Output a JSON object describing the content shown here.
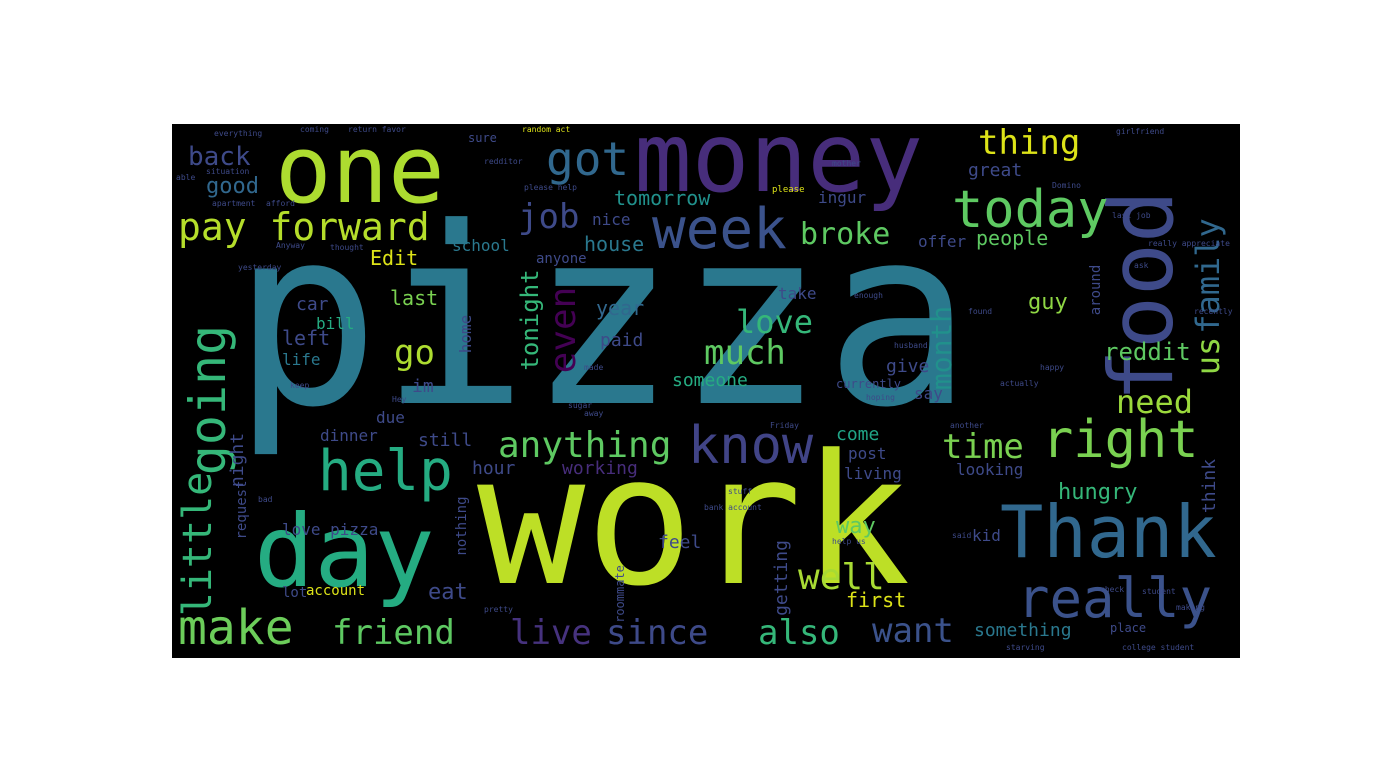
{
  "words": [
    {
      "id": "pizza",
      "text": "pizza",
      "color": "#2a788e"
    },
    {
      "id": "work",
      "text": "work",
      "color": "#bddf26"
    },
    {
      "id": "money",
      "text": "money",
      "color": "#472d7b"
    },
    {
      "id": "one",
      "text": "one",
      "color": "#addc30"
    },
    {
      "id": "food",
      "text": "food",
      "color": "#3e4a89"
    },
    {
      "id": "day",
      "text": "day",
      "color": "#25ac82"
    },
    {
      "id": "thank",
      "text": "Thank",
      "color": "#31688e"
    },
    {
      "id": "really",
      "text": "really",
      "color": "#3b528b"
    },
    {
      "id": "today",
      "text": "today",
      "color": "#5ec962"
    },
    {
      "id": "week",
      "text": "week",
      "color": "#3b528b"
    },
    {
      "id": "got",
      "text": "got",
      "color": "#31688e"
    },
    {
      "id": "right",
      "text": "right",
      "color": "#7ad151"
    },
    {
      "id": "know",
      "text": "know",
      "color": "#414487"
    },
    {
      "id": "help",
      "text": "help",
      "color": "#25ac82"
    },
    {
      "id": "pay-forward",
      "text": "pay forward",
      "color": "#b5de2b"
    },
    {
      "id": "make",
      "text": "make",
      "color": "#6ccd5a"
    },
    {
      "id": "going",
      "text": "going",
      "color": "#35b779"
    },
    {
      "id": "little",
      "text": "little",
      "color": "#35b779"
    },
    {
      "id": "anything",
      "text": "anything",
      "color": "#5ec962"
    },
    {
      "id": "family",
      "text": "family",
      "color": "#31688e"
    },
    {
      "id": "us",
      "text": "us",
      "color": "#8fd744"
    },
    {
      "id": "friend",
      "text": "friend",
      "color": "#5ec962"
    },
    {
      "id": "since",
      "text": "since",
      "color": "#3e4a89"
    },
    {
      "id": "also",
      "text": "also",
      "color": "#35b779"
    },
    {
      "id": "live",
      "text": "live",
      "color": "#46327e"
    },
    {
      "id": "want",
      "text": "want",
      "color": "#3b528b"
    },
    {
      "id": "even",
      "text": "even",
      "color": "#440154"
    },
    {
      "id": "job",
      "text": "job",
      "color": "#3e4a89"
    },
    {
      "id": "thing",
      "text": "thing",
      "color": "#dde318"
    },
    {
      "id": "back",
      "text": "back",
      "color": "#3e4a89"
    },
    {
      "id": "good",
      "text": "good",
      "color": "#31688e"
    },
    {
      "id": "broke",
      "text": "broke",
      "color": "#5ec962"
    },
    {
      "id": "love",
      "text": "love",
      "color": "#35b779"
    },
    {
      "id": "much",
      "text": "much",
      "color": "#5ec962"
    },
    {
      "id": "need",
      "text": "need",
      "color": "#9bd93c"
    },
    {
      "id": "time",
      "text": "time",
      "color": "#7ad151"
    },
    {
      "id": "well",
      "text": "well",
      "color": "#a8db34"
    },
    {
      "id": "go",
      "text": "go",
      "color": "#addc30"
    },
    {
      "id": "month",
      "text": "month",
      "color": "#21918c"
    },
    {
      "id": "tonight",
      "text": "tonight",
      "color": "#35b779"
    },
    {
      "id": "reddit",
      "text": "reddit",
      "color": "#5ec962"
    },
    {
      "id": "hungry",
      "text": "hungry",
      "color": "#35b779"
    },
    {
      "id": "tomorrow",
      "text": "tomorrow",
      "color": "#21918c"
    },
    {
      "id": "house",
      "text": "house",
      "color": "#2a788e"
    },
    {
      "id": "people",
      "text": "people",
      "color": "#5ec962"
    },
    {
      "id": "edit",
      "text": "Edit",
      "color": "#dde318"
    },
    {
      "id": "last",
      "text": "last",
      "color": "#7ad151"
    },
    {
      "id": "left",
      "text": "left",
      "color": "#3e4a89"
    },
    {
      "id": "year",
      "text": "year",
      "color": "#31688e"
    },
    {
      "id": "guy",
      "text": "guy",
      "color": "#8fd744"
    },
    {
      "id": "someone",
      "text": "someone",
      "color": "#25ac82"
    },
    {
      "id": "way",
      "text": "way",
      "color": "#5ec962"
    },
    {
      "id": "come",
      "text": "come",
      "color": "#20a486"
    },
    {
      "id": "hour",
      "text": "hour",
      "color": "#3e4a89"
    },
    {
      "id": "working",
      "text": "working",
      "color": "#472d7b"
    },
    {
      "id": "still",
      "text": "still",
      "color": "#3e4a89"
    },
    {
      "id": "eat",
      "text": "eat",
      "color": "#3e4a89"
    },
    {
      "id": "first",
      "text": "first",
      "color": "#dde318"
    },
    {
      "id": "getting",
      "text": "getting",
      "color": "#3e4a89"
    },
    {
      "id": "feel",
      "text": "feel",
      "color": "#3e4a89"
    },
    {
      "id": "something",
      "text": "something",
      "color": "#2a788e"
    },
    {
      "id": "account",
      "text": "account",
      "color": "#dde318"
    },
    {
      "id": "night",
      "text": "night",
      "color": "#3e4a89"
    },
    {
      "id": "love-pizza",
      "text": "love pizza",
      "color": "#3e4a89"
    },
    {
      "id": "car",
      "text": "car",
      "color": "#3e4a89"
    },
    {
      "id": "bill",
      "text": "bill",
      "color": "#25ac82"
    },
    {
      "id": "life",
      "text": "life",
      "color": "#2a788e"
    },
    {
      "id": "im",
      "text": "im",
      "color": "#3e4a89"
    },
    {
      "id": "due",
      "text": "due",
      "color": "#3e4a89"
    },
    {
      "id": "dinner",
      "text": "dinner",
      "color": "#3e4a89"
    },
    {
      "id": "paid",
      "text": "paid",
      "color": "#3e4a89"
    },
    {
      "id": "home",
      "text": "home",
      "color": "#3e4a89"
    },
    {
      "id": "school",
      "text": "school",
      "color": "#2a788e"
    },
    {
      "id": "anyone",
      "text": "anyone",
      "color": "#3e4a89"
    },
    {
      "id": "nice",
      "text": "nice",
      "color": "#3e4a89"
    },
    {
      "id": "ingur",
      "text": "ingur",
      "color": "#3e4a89"
    },
    {
      "id": "great",
      "text": "great",
      "color": "#3e4a89"
    },
    {
      "id": "offer",
      "text": "offer",
      "color": "#3e4a89"
    },
    {
      "id": "take",
      "text": "take",
      "color": "#3e4a89"
    },
    {
      "id": "give",
      "text": "give",
      "color": "#3e4a89"
    },
    {
      "id": "say",
      "text": "say",
      "color": "#3e4a89"
    },
    {
      "id": "post",
      "text": "post",
      "color": "#3e4a89"
    },
    {
      "id": "living",
      "text": "living",
      "color": "#3e4a89"
    },
    {
      "id": "looking",
      "text": "looking",
      "color": "#3e4a89"
    },
    {
      "id": "think",
      "text": "think",
      "color": "#3e4a89"
    },
    {
      "id": "around",
      "text": "around",
      "color": "#3e4a89"
    },
    {
      "id": "currently",
      "text": "currently",
      "color": "#3e4a89"
    },
    {
      "id": "kid",
      "text": "kid",
      "color": "#3e4a89"
    },
    {
      "id": "request",
      "text": "request",
      "color": "#3e4a89"
    },
    {
      "id": "nothing",
      "text": "nothing",
      "color": "#3e4a89"
    },
    {
      "id": "lot",
      "text": "lot",
      "color": "#3e4a89"
    },
    {
      "id": "roommate",
      "text": "roommate",
      "color": "#3e4a89"
    },
    {
      "id": "place",
      "text": "place",
      "color": "#3e4a89"
    },
    {
      "id": "sure",
      "text": "sure",
      "color": "#3e4a89"
    },
    {
      "id": "please",
      "text": "please",
      "color": "#dde318"
    },
    {
      "id": "everything",
      "text": "everything",
      "color": "#3e4a89"
    },
    {
      "id": "coming",
      "text": "coming",
      "color": "#3e4a89"
    },
    {
      "id": "return-favor",
      "text": "return favor",
      "color": "#3e4a89"
    },
    {
      "id": "random-act",
      "text": "random act",
      "color": "#dde318"
    },
    {
      "id": "girlfriend",
      "text": "girlfriend",
      "color": "#3e4a89"
    },
    {
      "id": "redditor",
      "text": "redditor",
      "color": "#3e4a89"
    },
    {
      "id": "please-help",
      "text": "please help",
      "color": "#3e4a89"
    },
    {
      "id": "anyway",
      "text": "Anyway",
      "color": "#3e4a89"
    },
    {
      "id": "apartment",
      "text": "apartment",
      "color": "#3e4a89"
    },
    {
      "id": "afford",
      "text": "afford",
      "color": "#3e4a89"
    },
    {
      "id": "able",
      "text": "able",
      "color": "#3e4a89"
    },
    {
      "id": "situation",
      "text": "situation",
      "color": "#3e4a89"
    },
    {
      "id": "last-job",
      "text": "last job",
      "color": "#3e4a89"
    },
    {
      "id": "domino",
      "text": "Domino",
      "color": "#3e4a89"
    },
    {
      "id": "friday",
      "text": "Friday",
      "color": "#3e4a89"
    },
    {
      "id": "husband",
      "text": "husband",
      "color": "#3e4a89"
    },
    {
      "id": "hoping",
      "text": "hoping",
      "color": "#3e4a89"
    },
    {
      "id": "happy",
      "text": "happy",
      "color": "#3e4a89"
    },
    {
      "id": "actually",
      "text": "actually",
      "color": "#3e4a89"
    },
    {
      "id": "another",
      "text": "another",
      "color": "#3e4a89"
    },
    {
      "id": "bank-account",
      "text": "bank account",
      "color": "#3e4a89"
    },
    {
      "id": "help-us",
      "text": "help us",
      "color": "#3e4a89"
    },
    {
      "id": "student",
      "text": "student",
      "color": "#3e4a89"
    },
    {
      "id": "check",
      "text": "check",
      "color": "#3e4a89"
    },
    {
      "id": "making",
      "text": "making",
      "color": "#3e4a89"
    },
    {
      "id": "college-student",
      "text": "college student",
      "color": "#3e4a89"
    },
    {
      "id": "starving",
      "text": "starving",
      "color": "#3e4a89"
    },
    {
      "id": "stuff",
      "text": "stuff",
      "color": "#3e4a89"
    },
    {
      "id": "said",
      "text": "said",
      "color": "#3e4a89"
    },
    {
      "id": "pretty",
      "text": "pretty",
      "color": "#3e4a89"
    },
    {
      "id": "enough",
      "text": "enough",
      "color": "#3e4a89"
    },
    {
      "id": "really-appreciate",
      "text": "really appreciate",
      "color": "#3e4a89"
    },
    {
      "id": "recently",
      "text": "recently",
      "color": "#3e4a89"
    },
    {
      "id": "ask",
      "text": "ask",
      "color": "#3e4a89"
    },
    {
      "id": "found",
      "text": "found",
      "color": "#3e4a89"
    },
    {
      "id": "keep",
      "text": "keep",
      "color": "#3e4a89"
    },
    {
      "id": "made",
      "text": "made",
      "color": "#3e4a89"
    },
    {
      "id": "yesterday",
      "text": "yesterday",
      "color": "#3e4a89"
    },
    {
      "id": "thought",
      "text": "thought",
      "color": "#3e4a89"
    },
    {
      "id": "mother",
      "text": "mother",
      "color": "#3e4a89"
    },
    {
      "id": "away",
      "text": "away",
      "color": "#3e4a89"
    },
    {
      "id": "bad",
      "text": "bad",
      "color": "#3e4a89"
    },
    {
      "id": "hey",
      "text": "Hey",
      "color": "#3e4a89"
    },
    {
      "id": "sugar",
      "text": "sugar",
      "color": "#3e4a89"
    }
  ]
}
